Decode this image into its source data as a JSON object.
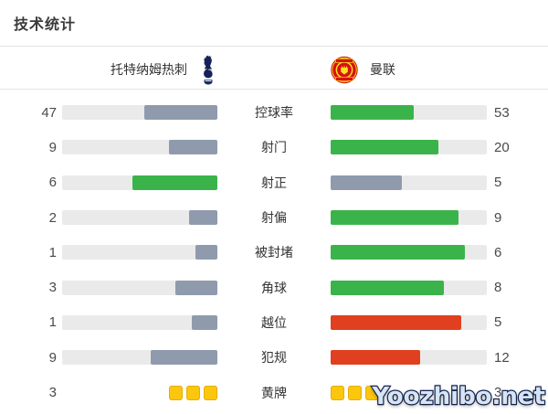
{
  "title": "技术统计",
  "header": {
    "home_team": "托特纳姆热刺",
    "away_team": "曼联",
    "home_logo_icon": "tottenham-hotspur-crest",
    "away_logo_icon": "manchester-united-crest"
  },
  "watermark": "Yoozhibo.net",
  "colors": {
    "green": "#3ab44a",
    "red": "#e0401f",
    "gray": "#8f9bad",
    "yellow": "#fcc60d",
    "track": "#eaeaea"
  },
  "chart_data": {
    "type": "bar",
    "subtype": "paired-horizontal-comparison",
    "title": "技术统计",
    "legend_position": "top",
    "bar_fill_rule": "fill width = value / (home + away)",
    "categories": [
      "控球率",
      "射门",
      "射正",
      "射偏",
      "被封堵",
      "角球",
      "越位",
      "犯规",
      "黄牌"
    ],
    "series": [
      {
        "name": "托特纳姆热刺",
        "values": [
          47,
          9,
          6,
          2,
          1,
          3,
          1,
          9,
          3
        ]
      },
      {
        "name": "曼联",
        "values": [
          53,
          20,
          5,
          9,
          6,
          8,
          5,
          12,
          3
        ]
      }
    ],
    "rows": [
      {
        "label": "控球率",
        "home": 47,
        "away": 53,
        "home_color": "gray",
        "away_color": "green",
        "style": "bar"
      },
      {
        "label": "射门",
        "home": 9,
        "away": 20,
        "home_color": "gray",
        "away_color": "green",
        "style": "bar"
      },
      {
        "label": "射正",
        "home": 6,
        "away": 5,
        "home_color": "green",
        "away_color": "gray",
        "style": "bar"
      },
      {
        "label": "射偏",
        "home": 2,
        "away": 9,
        "home_color": "gray",
        "away_color": "green",
        "style": "bar"
      },
      {
        "label": "被封堵",
        "home": 1,
        "away": 6,
        "home_color": "gray",
        "away_color": "green",
        "style": "bar"
      },
      {
        "label": "角球",
        "home": 3,
        "away": 8,
        "home_color": "gray",
        "away_color": "green",
        "style": "bar"
      },
      {
        "label": "越位",
        "home": 1,
        "away": 5,
        "home_color": "gray",
        "away_color": "red",
        "style": "bar"
      },
      {
        "label": "犯规",
        "home": 9,
        "away": 12,
        "home_color": "gray",
        "away_color": "red",
        "style": "bar"
      },
      {
        "label": "黄牌",
        "home": 3,
        "away": 3,
        "home_color": "yellow",
        "away_color": "yellow",
        "style": "cards"
      }
    ]
  }
}
